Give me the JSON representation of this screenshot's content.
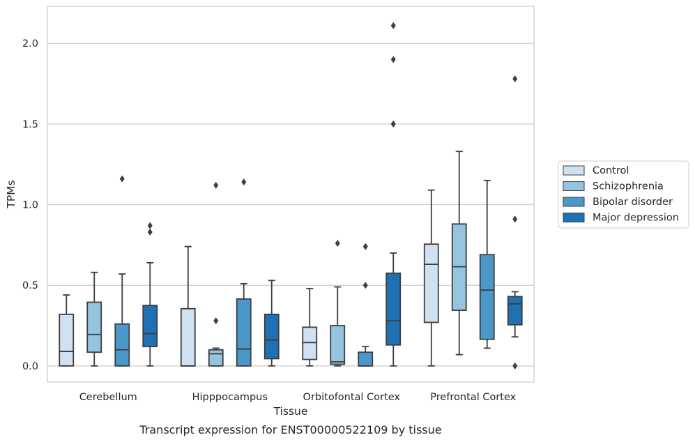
{
  "chart_data": {
    "type": "box",
    "caption": "Transcript expression for ENST00000522109 by tissue",
    "xlabel": "Tissue",
    "ylabel": "TPMs",
    "ylim": [
      -0.1,
      2.23
    ],
    "yticks": [
      0.0,
      0.5,
      1.0,
      1.5,
      2.0
    ],
    "ytick_labels": [
      "0.0",
      "0.5",
      "1.0",
      "1.5",
      "2.0"
    ],
    "grid": "horizontal",
    "legend_position": "right",
    "categories": [
      "Cerebellum",
      "Hipppocampus",
      "Orbitofontal Cortex",
      "Prefrontal Cortex"
    ],
    "series": [
      {
        "name": "Control",
        "color": "#d0e1f2",
        "boxes": [
          {
            "whisker_low": 0.0,
            "q1": 0.0,
            "median": 0.09,
            "q3": 0.32,
            "whisker_high": 0.44,
            "outliers": []
          },
          {
            "whisker_low": 0.0,
            "q1": 0.0,
            "median": 0.0,
            "q3": 0.355,
            "whisker_high": 0.74,
            "outliers": []
          },
          {
            "whisker_low": 0.0,
            "q1": 0.04,
            "median": 0.145,
            "q3": 0.24,
            "whisker_high": 0.48,
            "outliers": []
          },
          {
            "whisker_low": 0.0,
            "q1": 0.27,
            "median": 0.63,
            "q3": 0.755,
            "whisker_high": 1.09,
            "outliers": []
          }
        ]
      },
      {
        "name": "Schizophrenia",
        "color": "#94c4df",
        "boxes": [
          {
            "whisker_low": 0.0,
            "q1": 0.085,
            "median": 0.195,
            "q3": 0.395,
            "whisker_high": 0.58,
            "outliers": []
          },
          {
            "whisker_low": 0.0,
            "q1": 0.0,
            "median": 0.075,
            "q3": 0.1,
            "whisker_high": 0.11,
            "outliers": [
              0.28,
              1.12
            ]
          },
          {
            "whisker_low": 0.0,
            "q1": 0.01,
            "median": 0.025,
            "q3": 0.25,
            "whisker_high": 0.49,
            "outliers": [
              0.76
            ]
          },
          {
            "whisker_low": 0.07,
            "q1": 0.345,
            "median": 0.615,
            "q3": 0.88,
            "whisker_high": 1.33,
            "outliers": []
          }
        ]
      },
      {
        "name": "Bipolar disorder",
        "color": "#4a98c9",
        "boxes": [
          {
            "whisker_low": 0.0,
            "q1": 0.0,
            "median": 0.1,
            "q3": 0.26,
            "whisker_high": 0.57,
            "outliers": [
              1.16
            ]
          },
          {
            "whisker_low": 0.0,
            "q1": 0.0,
            "median": 0.105,
            "q3": 0.415,
            "whisker_high": 0.51,
            "outliers": [
              1.14
            ]
          },
          {
            "whisker_low": 0.0,
            "q1": 0.0,
            "median": 0.0,
            "q3": 0.085,
            "whisker_high": 0.12,
            "outliers": [
              0.5,
              0.74
            ]
          },
          {
            "whisker_low": 0.11,
            "q1": 0.165,
            "median": 0.47,
            "q3": 0.69,
            "whisker_high": 1.15,
            "outliers": []
          }
        ]
      },
      {
        "name": "Major depression",
        "color": "#2070b4",
        "boxes": [
          {
            "whisker_low": 0.0,
            "q1": 0.12,
            "median": 0.2,
            "q3": 0.375,
            "whisker_high": 0.64,
            "outliers": [
              0.83,
              0.87
            ]
          },
          {
            "whisker_low": 0.0,
            "q1": 0.045,
            "median": 0.16,
            "q3": 0.32,
            "whisker_high": 0.53,
            "outliers": []
          },
          {
            "whisker_low": 0.0,
            "q1": 0.13,
            "median": 0.28,
            "q3": 0.575,
            "whisker_high": 0.7,
            "outliers": [
              1.5,
              1.9,
              2.11
            ]
          },
          {
            "whisker_low": 0.18,
            "q1": 0.255,
            "median": 0.385,
            "q3": 0.43,
            "whisker_high": 0.46,
            "outliers": [
              0.0,
              0.91,
              1.78
            ]
          }
        ]
      }
    ]
  }
}
